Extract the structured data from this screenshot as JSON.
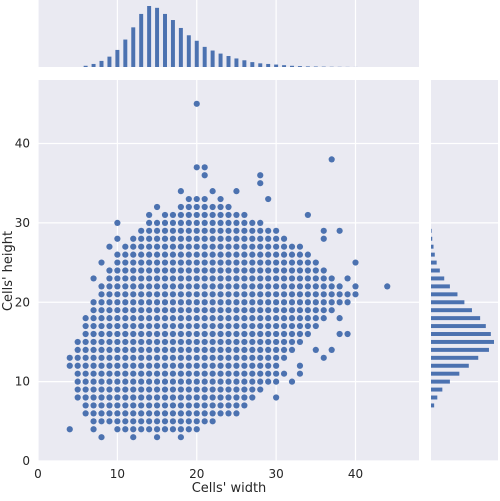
{
  "chart_data": {
    "type": "scatter",
    "title": "",
    "xlabel": "Cells' width",
    "ylabel": "Cells' height",
    "xlim": [
      0,
      48
    ],
    "ylim": [
      0,
      48
    ],
    "x_ticks": [
      0,
      10,
      20,
      30,
      40
    ],
    "y_ticks": [
      0,
      10,
      20,
      30,
      40
    ],
    "x_tick_labels": [
      "0",
      "10",
      "20",
      "30",
      "40"
    ],
    "y_tick_labels": [
      "0",
      "10",
      "20",
      "30",
      "40"
    ],
    "grid": true,
    "style": {
      "background": "#EAEAF2",
      "marker_color": "#4C72B0",
      "grid_color": "#FFFFFF"
    },
    "integer_grid_hull": {
      "x_min": 4,
      "x_max": 40,
      "lower_boundary": [
        [
          4,
          13
        ],
        [
          5,
          9
        ],
        [
          6,
          7
        ],
        [
          7,
          5
        ],
        [
          8,
          5
        ],
        [
          9,
          5
        ],
        [
          10,
          4
        ],
        [
          11,
          4
        ],
        [
          12,
          4
        ],
        [
          13,
          4
        ],
        [
          14,
          4
        ],
        [
          15,
          4
        ],
        [
          16,
          4
        ],
        [
          17,
          4
        ],
        [
          18,
          4
        ],
        [
          19,
          4
        ],
        [
          20,
          4
        ],
        [
          21,
          5
        ],
        [
          22,
          5
        ],
        [
          23,
          6
        ],
        [
          24,
          6
        ],
        [
          25,
          7
        ],
        [
          26,
          7
        ],
        [
          27,
          8
        ],
        [
          28,
          9
        ],
        [
          29,
          10
        ],
        [
          30,
          11
        ],
        [
          31,
          13
        ],
        [
          32,
          14
        ],
        [
          33,
          15
        ],
        [
          34,
          16
        ],
        [
          35,
          17
        ],
        [
          36,
          18
        ],
        [
          37,
          19
        ],
        [
          38,
          20
        ],
        [
          39,
          20
        ],
        [
          40,
          21
        ]
      ],
      "upper_boundary": [
        [
          4,
          13
        ],
        [
          5,
          15
        ],
        [
          6,
          18
        ],
        [
          7,
          20
        ],
        [
          8,
          22
        ],
        [
          9,
          24
        ],
        [
          10,
          26
        ],
        [
          11,
          27
        ],
        [
          12,
          28
        ],
        [
          13,
          29
        ],
        [
          14,
          30
        ],
        [
          15,
          30
        ],
        [
          16,
          31
        ],
        [
          17,
          31
        ],
        [
          18,
          32
        ],
        [
          19,
          32
        ],
        [
          20,
          33
        ],
        [
          21,
          33
        ],
        [
          22,
          32
        ],
        [
          23,
          32
        ],
        [
          24,
          32
        ],
        [
          25,
          31
        ],
        [
          26,
          31
        ],
        [
          27,
          30
        ],
        [
          28,
          30
        ],
        [
          29,
          29
        ],
        [
          30,
          29
        ],
        [
          31,
          28
        ],
        [
          32,
          27
        ],
        [
          33,
          27
        ],
        [
          34,
          26
        ],
        [
          35,
          25
        ],
        [
          36,
          24
        ],
        [
          37,
          23
        ],
        [
          38,
          22
        ],
        [
          39,
          21
        ],
        [
          40,
          21
        ]
      ]
    },
    "extra_points": [
      [
        4,
        4
      ],
      [
        12,
        3
      ],
      [
        10,
        30
      ],
      [
        20,
        45
      ],
      [
        37,
        38
      ],
      [
        20,
        37
      ],
      [
        21,
        37
      ],
      [
        21,
        36
      ],
      [
        28,
        36
      ],
      [
        28,
        35
      ],
      [
        18,
        34
      ],
      [
        22,
        34
      ],
      [
        25,
        34
      ],
      [
        19,
        33
      ],
      [
        23,
        33
      ],
      [
        14,
        31
      ],
      [
        15,
        32
      ],
      [
        29,
        33
      ],
      [
        34,
        31
      ],
      [
        38,
        29
      ],
      [
        36,
        28
      ],
      [
        36,
        29
      ],
      [
        10,
        28
      ],
      [
        9,
        27
      ],
      [
        8,
        25
      ],
      [
        7,
        23
      ],
      [
        40,
        25
      ],
      [
        39,
        23
      ],
      [
        40,
        22
      ],
      [
        44,
        22
      ],
      [
        38,
        18
      ],
      [
        38,
        16
      ],
      [
        39,
        16
      ],
      [
        37,
        14
      ],
      [
        36,
        13
      ],
      [
        33,
        12
      ],
      [
        32,
        10
      ],
      [
        33,
        11
      ],
      [
        30,
        8
      ],
      [
        26,
        7
      ],
      [
        25,
        6
      ],
      [
        30,
        10
      ],
      [
        31,
        11
      ],
      [
        35,
        14
      ],
      [
        4,
        12
      ],
      [
        5,
        8
      ],
      [
        6,
        6
      ],
      [
        7,
        4
      ],
      [
        8,
        3
      ],
      [
        15,
        3
      ],
      [
        18,
        3
      ]
    ],
    "marginal_x_hist": {
      "bins": [
        6,
        7,
        8,
        9,
        10,
        11,
        12,
        13,
        14,
        15,
        16,
        17,
        18,
        19,
        20,
        21,
        22,
        23,
        24,
        25,
        26,
        27,
        28,
        29,
        30,
        31,
        32,
        33,
        34,
        35,
        36,
        37,
        38,
        39,
        40
      ],
      "heights": [
        0.02,
        0.05,
        0.1,
        0.17,
        0.28,
        0.45,
        0.65,
        0.87,
        1.0,
        0.97,
        0.87,
        0.77,
        0.64,
        0.52,
        0.43,
        0.33,
        0.27,
        0.22,
        0.18,
        0.14,
        0.11,
        0.08,
        0.06,
        0.05,
        0.04,
        0.03,
        0.02,
        0.015,
        0.01,
        0.008,
        0.006,
        0.004,
        0.003,
        0.002,
        0.001
      ]
    },
    "marginal_y_hist": {
      "bins": [
        7,
        8,
        9,
        10,
        11,
        12,
        13,
        14,
        15,
        16,
        17,
        18,
        19,
        20,
        21,
        22,
        23,
        24,
        25,
        26,
        27,
        28,
        29
      ],
      "heights": [
        0.05,
        0.1,
        0.18,
        0.3,
        0.45,
        0.6,
        0.75,
        0.92,
        1.0,
        0.95,
        0.87,
        0.78,
        0.65,
        0.53,
        0.42,
        0.3,
        0.21,
        0.14,
        0.09,
        0.06,
        0.04,
        0.02,
        0.01
      ]
    }
  }
}
